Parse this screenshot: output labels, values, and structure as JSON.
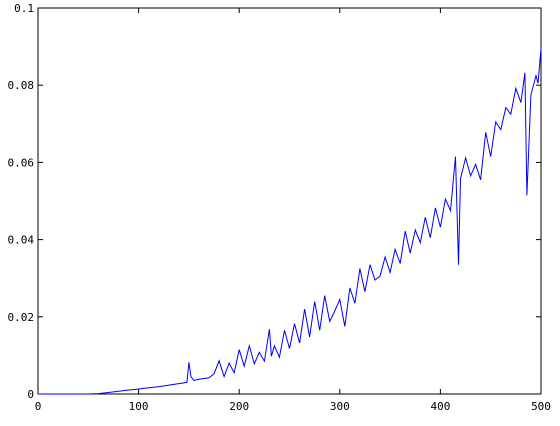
{
  "chart_data": {
    "type": "line",
    "title": "",
    "xlabel": "",
    "ylabel": "",
    "xlim": [
      0,
      500
    ],
    "ylim": [
      0,
      0.1
    ],
    "grid": false,
    "legend": "none",
    "x_ticks": [
      "0",
      "100",
      "200",
      "300",
      "400",
      "500"
    ],
    "y_ticks": [
      "0",
      "0.02",
      "0.04",
      "0.06",
      "0.08",
      "0.1"
    ],
    "line_color": "#0000ff",
    "series": [
      {
        "x": [
          0,
          50,
          60,
          70,
          80,
          90,
          100,
          110,
          120,
          130,
          140,
          148,
          150,
          152,
          155,
          160,
          170,
          175,
          180,
          185,
          190,
          195,
          200,
          205,
          210,
          215,
          220,
          225,
          230,
          232,
          235,
          240,
          245,
          250,
          255,
          260,
          265,
          270,
          275,
          280,
          285,
          290,
          295,
          300,
          305,
          310,
          315,
          320,
          325,
          330,
          335,
          340,
          345,
          350,
          355,
          360,
          365,
          370,
          375,
          380,
          385,
          390,
          395,
          400,
          405,
          410,
          415,
          418,
          420,
          425,
          430,
          435,
          440,
          445,
          450,
          455,
          460,
          465,
          470,
          475,
          480,
          484,
          486,
          490,
          495,
          497,
          500
        ],
        "y": [
          0,
          0,
          0.0001,
          0.0004,
          0.0007,
          0.001,
          0.0013,
          0.0016,
          0.0019,
          0.0023,
          0.0027,
          0.003,
          0.0082,
          0.0045,
          0.0035,
          0.0038,
          0.0042,
          0.0052,
          0.0086,
          0.0045,
          0.008,
          0.0055,
          0.0115,
          0.0072,
          0.0125,
          0.0078,
          0.0108,
          0.0085,
          0.0168,
          0.0098,
          0.0125,
          0.0095,
          0.0165,
          0.0118,
          0.0182,
          0.0132,
          0.022,
          0.0148,
          0.024,
          0.0165,
          0.0255,
          0.0188,
          0.0215,
          0.0245,
          0.0175,
          0.0275,
          0.0235,
          0.0325,
          0.0265,
          0.0335,
          0.0295,
          0.0305,
          0.0355,
          0.0315,
          0.0375,
          0.0338,
          0.0422,
          0.0365,
          0.0425,
          0.0392,
          0.0458,
          0.0405,
          0.0482,
          0.0432,
          0.0505,
          0.0475,
          0.0615,
          0.0335,
          0.0558,
          0.0612,
          0.0565,
          0.0595,
          0.0555,
          0.0678,
          0.0615,
          0.0705,
          0.0685,
          0.0742,
          0.0725,
          0.0792,
          0.0755,
          0.0832,
          0.0515,
          0.0775,
          0.0825,
          0.0805,
          0.0895
        ]
      }
    ]
  }
}
